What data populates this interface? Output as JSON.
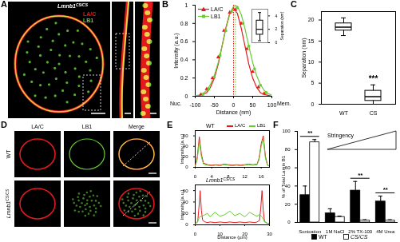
{
  "panel_labels": [
    "A",
    "B",
    "C",
    "D",
    "E",
    "F"
  ],
  "images": {
    "A": {
      "genotype": "Lmnb1",
      "genotype_superscript": "CS/CS",
      "channels": [
        {
          "name": "LA/C",
          "color": "#e31a1c"
        },
        {
          "name": "LB1",
          "color": "#66cc33"
        }
      ]
    },
    "D": {
      "columns": [
        "LA/C",
        "LB1",
        "Merge"
      ],
      "rows": [
        {
          "label": "WT"
        },
        {
          "label": "Lmnb1",
          "superscript": "CS/CS"
        }
      ]
    }
  },
  "chart_data": [
    {
      "type": "line",
      "x_label": "Distance (nm)",
      "y_label": "Intensity (a.u.)",
      "xlim": [
        -100,
        100
      ],
      "xticks": [
        -100,
        -50,
        0,
        50,
        100
      ],
      "ylim": [
        0,
        1
      ],
      "yticks": [
        0,
        0.2,
        0.4,
        0.6,
        0.8,
        1
      ],
      "axis_end_labels": [
        "Nuc.",
        "Mem."
      ],
      "legend": "top-left",
      "series": [
        {
          "name": "LA/C",
          "color": "#e31a1c",
          "marker": "triangle",
          "peak": 0,
          "x": [
            -85,
            -70,
            -55,
            -40,
            -25,
            -10,
            5,
            20,
            35,
            50,
            65,
            80
          ],
          "values": [
            0.02,
            0.08,
            0.2,
            0.43,
            0.72,
            0.92,
            0.95,
            0.8,
            0.52,
            0.27,
            0.1,
            0.03
          ],
          "fit": {
            "x": [
              -100,
              -90,
              -80,
              -70,
              -60,
              -50,
              -40,
              -30,
              -20,
              -10,
              0,
              10,
              20,
              30,
              40,
              50,
              60,
              70,
              80,
              90,
              100
            ],
            "values": [
              0,
              0.01,
              0.02,
              0.04,
              0.1,
              0.2,
              0.35,
              0.55,
              0.75,
              0.91,
              0.97,
              0.91,
              0.75,
              0.55,
              0.35,
              0.2,
              0.1,
              0.04,
              0.02,
              0.01,
              0
            ]
          }
        },
        {
          "name": "LB1",
          "color": "#66cc33",
          "marker": "square",
          "peak": 5,
          "x": [
            -80,
            -65,
            -50,
            -35,
            -20,
            -5,
            10,
            25,
            40,
            55,
            70,
            85
          ],
          "values": [
            0.02,
            0.08,
            0.21,
            0.45,
            0.72,
            0.93,
            0.97,
            0.8,
            0.55,
            0.3,
            0.12,
            0.04
          ],
          "fit": {
            "x": [
              -100,
              -90,
              -80,
              -70,
              -60,
              -50,
              -40,
              -30,
              -20,
              -10,
              0,
              10,
              20,
              30,
              40,
              50,
              60,
              70,
              80,
              90,
              100
            ],
            "values": [
              0.005,
              0.012,
              0.03,
              0.064,
              0.13,
              0.23,
              0.37,
              0.55,
              0.74,
              0.9,
              0.99,
              0.99,
              0.9,
              0.74,
              0.55,
              0.37,
              0.23,
              0.13,
              0.064,
              0.03,
              0.012
            ]
          }
        }
      ],
      "inset": {
        "type": "box",
        "y_label": "Separation (nm)",
        "ylim": [
          0,
          5
        ],
        "yticks": [
          0,
          2,
          4
        ],
        "box": {
          "min": 0.3,
          "q1": 1.2,
          "median": 2,
          "q3": 3.3,
          "max": 4.5
        }
      }
    },
    {
      "type": "box",
      "categories": [
        "WT",
        "CS"
      ],
      "y_label": "Separation (nm)",
      "ylim": [
        0,
        22
      ],
      "yticks": [
        0,
        5,
        10,
        15,
        20
      ],
      "boxes": [
        {
          "min": 16.3,
          "q1": 17.5,
          "median": 18.3,
          "q3": 19.2,
          "max": 20.5
        },
        {
          "min": 0,
          "q1": 0.8,
          "median": 1.8,
          "q3": 3.2,
          "max": 4.6
        }
      ],
      "annotations": [
        {
          "category": "CS",
          "text": "***"
        }
      ]
    },
    {
      "type": "line",
      "title": "WT",
      "y_label": "Intensity (a.u.)",
      "legend": "top-right",
      "xlim": [
        0,
        18
      ],
      "xticks": [
        0,
        4,
        8,
        12,
        16
      ],
      "ylim": [
        0,
        70
      ],
      "yticks": [
        0,
        20,
        40,
        60
      ],
      "x": [
        0,
        0.5,
        1,
        1.5,
        2,
        3,
        4,
        5,
        6,
        7,
        8,
        9,
        10,
        11,
        12,
        13,
        14,
        15,
        15.5,
        16,
        16.5,
        17,
        17.5,
        18
      ],
      "series": [
        {
          "name": "LA/C",
          "color": "#e31a1c",
          "values": [
            3,
            20,
            58,
            25,
            8,
            5,
            4,
            5,
            4,
            6,
            5,
            4,
            5,
            4,
            5,
            6,
            5,
            6,
            18,
            45,
            60,
            22,
            5,
            2
          ]
        },
        {
          "name": "LB1",
          "color": "#66cc33",
          "values": [
            2,
            15,
            50,
            20,
            6,
            4,
            3,
            4,
            3,
            5,
            4,
            3,
            4,
            3,
            4,
            5,
            4,
            5,
            15,
            40,
            55,
            18,
            4,
            2
          ]
        }
      ]
    },
    {
      "type": "line",
      "title": "Lmnb1",
      "title_superscript": "CS/CS",
      "x_label": "Distance (µm)",
      "y_label": "Intensity (a.u.)",
      "xlim": [
        0,
        30
      ],
      "xticks": [
        0,
        10,
        20,
        30
      ],
      "ylim": [
        0,
        70
      ],
      "yticks": [
        0,
        20,
        40,
        60
      ],
      "x": [
        0,
        1,
        1.5,
        2,
        2.5,
        3,
        4,
        5,
        6,
        8,
        10,
        12,
        14,
        16,
        18,
        20,
        22,
        24,
        25,
        26,
        26.5,
        27,
        27.5,
        28,
        29,
        30
      ],
      "series": [
        {
          "name": "LA/C",
          "color": "#e31a1c",
          "values": [
            2,
            5,
            30,
            60,
            25,
            8,
            5,
            4,
            5,
            4,
            5,
            4,
            5,
            4,
            5,
            4,
            5,
            4,
            5,
            8,
            30,
            60,
            25,
            6,
            3,
            2
          ]
        },
        {
          "name": "LB1",
          "color": "#66cc33",
          "values": [
            2,
            6,
            12,
            15,
            14,
            16,
            18,
            20,
            14,
            22,
            15,
            18,
            24,
            16,
            20,
            14,
            22,
            17,
            15,
            18,
            16,
            14,
            10,
            5,
            3,
            2
          ]
        }
      ]
    },
    {
      "type": "bar",
      "categories": [
        "Sonication",
        "1M NaCl",
        "2% TX-100",
        "4M Urea"
      ],
      "y_label": "% of Total Lamin B1",
      "ylim": [
        0,
        100
      ],
      "yticks": [
        0,
        20,
        40,
        60,
        80,
        100
      ],
      "legend": "bottom",
      "series": [
        {
          "name": "WT",
          "color": "#000000",
          "values": [
            30,
            10,
            35,
            23
          ],
          "errors": [
            10,
            5,
            10,
            6
          ]
        },
        {
          "name": "CS/CS",
          "color": "#ffffff",
          "values": [
            88,
            6,
            2,
            2
          ],
          "errors": [
            3,
            1,
            1,
            1
          ]
        }
      ],
      "significance": [
        {
          "category": "Sonication",
          "text": "**"
        },
        {
          "category": "2% TX-100",
          "text": "**"
        },
        {
          "category": "4M Urea",
          "text": "**"
        }
      ],
      "gradient_label": "Stringency"
    }
  ]
}
